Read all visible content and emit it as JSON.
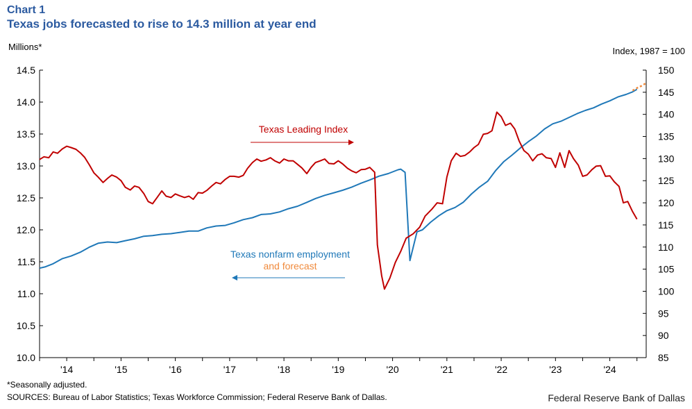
{
  "chart_label": "Chart 1",
  "title": "Texas jobs forecasted to rise to 14.3 million at year end",
  "left_axis_unit": "Millions*",
  "right_axis_unit": "Index,  1987 = 100",
  "footnote": "*Seasonally adjusted.",
  "sources": "SOURCES: Bureau of Labor Statistics; Texas Workforce Commission; Federal Reserve Bank of Dallas.",
  "credit": "Federal Reserve Bank of Dallas",
  "colors": {
    "employment": "#1f78b8",
    "leading": "#c00000",
    "forecast": "#f08a3c",
    "axis": "#000000"
  },
  "chart_data": {
    "type": "line",
    "x_range": [
      2013.5,
      2024.67
    ],
    "x_ticks": [
      {
        "label": "'14",
        "value": 2014.0
      },
      {
        "label": "'15",
        "value": 2015.0
      },
      {
        "label": "'16",
        "value": 2016.0
      },
      {
        "label": "'17",
        "value": 2017.0
      },
      {
        "label": "'18",
        "value": 2018.0
      },
      {
        "label": "'19",
        "value": 2019.0
      },
      {
        "label": "'20",
        "value": 2020.0
      },
      {
        "label": "'21",
        "value": 2021.0
      },
      {
        "label": "'22",
        "value": 2022.0
      },
      {
        "label": "'23",
        "value": 2023.0
      },
      {
        "label": "'24",
        "value": 2024.0
      }
    ],
    "y_left": {
      "label": "Millions*",
      "range": [
        10.0,
        14.5
      ],
      "ticks": [
        "10.0",
        "10.5",
        "11.0",
        "11.5",
        "12.0",
        "12.5",
        "13.0",
        "13.5",
        "14.0",
        "14.5"
      ]
    },
    "y_right": {
      "label": "Index, 1987 = 100",
      "range": [
        85,
        150
      ],
      "ticks": [
        "85",
        "90",
        "95",
        "100",
        "105",
        "110",
        "115",
        "120",
        "125",
        "130",
        "135",
        "140",
        "145",
        "150"
      ]
    },
    "series": [
      {
        "name": "Texas nonfarm employment",
        "axis": "left",
        "points": [
          [
            2013.5,
            11.4
          ],
          [
            2013.6,
            11.42
          ],
          [
            2013.75,
            11.47
          ],
          [
            2013.92,
            11.55
          ],
          [
            2014.08,
            11.59
          ],
          [
            2014.25,
            11.65
          ],
          [
            2014.42,
            11.73
          ],
          [
            2014.58,
            11.79
          ],
          [
            2014.75,
            11.81
          ],
          [
            2014.92,
            11.8
          ],
          [
            2015.08,
            11.83
          ],
          [
            2015.25,
            11.86
          ],
          [
            2015.42,
            11.9
          ],
          [
            2015.58,
            11.91
          ],
          [
            2015.75,
            11.93
          ],
          [
            2015.92,
            11.94
          ],
          [
            2016.08,
            11.96
          ],
          [
            2016.25,
            11.98
          ],
          [
            2016.42,
            11.98
          ],
          [
            2016.58,
            12.03
          ],
          [
            2016.75,
            12.06
          ],
          [
            2016.92,
            12.07
          ],
          [
            2017.08,
            12.11
          ],
          [
            2017.25,
            12.16
          ],
          [
            2017.42,
            12.19
          ],
          [
            2017.58,
            12.24
          ],
          [
            2017.75,
            12.25
          ],
          [
            2017.92,
            12.28
          ],
          [
            2018.08,
            12.33
          ],
          [
            2018.25,
            12.37
          ],
          [
            2018.42,
            12.43
          ],
          [
            2018.58,
            12.49
          ],
          [
            2018.75,
            12.54
          ],
          [
            2018.92,
            12.58
          ],
          [
            2019.08,
            12.62
          ],
          [
            2019.25,
            12.67
          ],
          [
            2019.42,
            12.73
          ],
          [
            2019.58,
            12.78
          ],
          [
            2019.75,
            12.84
          ],
          [
            2019.92,
            12.88
          ],
          [
            2020.1,
            12.94
          ],
          [
            2020.15,
            12.95
          ],
          [
            2020.23,
            12.9
          ],
          [
            2020.32,
            11.52
          ],
          [
            2020.45,
            11.97
          ],
          [
            2020.55,
            12.0
          ],
          [
            2020.7,
            12.12
          ],
          [
            2020.85,
            12.22
          ],
          [
            2021.0,
            12.3
          ],
          [
            2021.15,
            12.35
          ],
          [
            2021.3,
            12.43
          ],
          [
            2021.45,
            12.56
          ],
          [
            2021.6,
            12.67
          ],
          [
            2021.75,
            12.76
          ],
          [
            2021.9,
            12.93
          ],
          [
            2022.05,
            13.07
          ],
          [
            2022.2,
            13.17
          ],
          [
            2022.35,
            13.28
          ],
          [
            2022.5,
            13.38
          ],
          [
            2022.65,
            13.47
          ],
          [
            2022.8,
            13.58
          ],
          [
            2022.95,
            13.66
          ],
          [
            2023.1,
            13.7
          ],
          [
            2023.25,
            13.76
          ],
          [
            2023.4,
            13.82
          ],
          [
            2023.55,
            13.87
          ],
          [
            2023.7,
            13.91
          ],
          [
            2023.85,
            13.97
          ],
          [
            2024.0,
            14.02
          ],
          [
            2024.15,
            14.08
          ],
          [
            2024.3,
            14.12
          ],
          [
            2024.42,
            14.16
          ],
          [
            2024.5,
            14.2
          ]
        ]
      },
      {
        "name": "Texas employment forecast",
        "axis": "left",
        "dashed": true,
        "points": [
          [
            2024.42,
            14.18
          ],
          [
            2024.5,
            14.22
          ],
          [
            2024.6,
            14.26
          ],
          [
            2024.67,
            14.3
          ]
        ]
      },
      {
        "name": "Texas Leading Index",
        "axis": "right",
        "points": [
          [
            2013.5,
            129.8
          ],
          [
            2013.58,
            130.4
          ],
          [
            2013.67,
            130.2
          ],
          [
            2013.75,
            131.5
          ],
          [
            2013.83,
            131.2
          ],
          [
            2013.92,
            132.2
          ],
          [
            2014.0,
            132.8
          ],
          [
            2014.08,
            132.5
          ],
          [
            2014.17,
            132.1
          ],
          [
            2014.25,
            131.3
          ],
          [
            2014.33,
            130.3
          ],
          [
            2014.42,
            128.5
          ],
          [
            2014.5,
            126.8
          ],
          [
            2014.58,
            125.8
          ],
          [
            2014.67,
            124.6
          ],
          [
            2014.75,
            125.5
          ],
          [
            2014.83,
            126.3
          ],
          [
            2014.92,
            125.8
          ],
          [
            2015.0,
            125.0
          ],
          [
            2015.08,
            123.5
          ],
          [
            2015.17,
            122.9
          ],
          [
            2015.25,
            123.8
          ],
          [
            2015.33,
            123.5
          ],
          [
            2015.42,
            122.1
          ],
          [
            2015.5,
            120.3
          ],
          [
            2015.58,
            119.8
          ],
          [
            2015.67,
            121.3
          ],
          [
            2015.75,
            122.7
          ],
          [
            2015.83,
            121.5
          ],
          [
            2015.92,
            121.2
          ],
          [
            2016.0,
            122.0
          ],
          [
            2016.08,
            121.6
          ],
          [
            2016.17,
            121.2
          ],
          [
            2016.25,
            121.5
          ],
          [
            2016.33,
            120.8
          ],
          [
            2016.42,
            122.3
          ],
          [
            2016.5,
            122.2
          ],
          [
            2016.58,
            122.8
          ],
          [
            2016.67,
            123.8
          ],
          [
            2016.75,
            124.6
          ],
          [
            2016.83,
            124.3
          ],
          [
            2016.92,
            125.3
          ],
          [
            2017.0,
            126.0
          ],
          [
            2017.08,
            126.0
          ],
          [
            2017.17,
            125.8
          ],
          [
            2017.25,
            126.2
          ],
          [
            2017.33,
            127.8
          ],
          [
            2017.42,
            129.1
          ],
          [
            2017.5,
            129.9
          ],
          [
            2017.58,
            129.4
          ],
          [
            2017.67,
            129.7
          ],
          [
            2017.75,
            130.2
          ],
          [
            2017.83,
            129.5
          ],
          [
            2017.92,
            129.0
          ],
          [
            2018.0,
            129.9
          ],
          [
            2018.08,
            129.5
          ],
          [
            2018.17,
            129.5
          ],
          [
            2018.25,
            128.7
          ],
          [
            2018.33,
            127.9
          ],
          [
            2018.42,
            126.6
          ],
          [
            2018.5,
            128.0
          ],
          [
            2018.58,
            129.1
          ],
          [
            2018.67,
            129.5
          ],
          [
            2018.75,
            129.9
          ],
          [
            2018.83,
            128.9
          ],
          [
            2018.92,
            128.8
          ],
          [
            2019.0,
            129.5
          ],
          [
            2019.08,
            128.8
          ],
          [
            2019.17,
            127.8
          ],
          [
            2019.25,
            127.2
          ],
          [
            2019.33,
            126.8
          ],
          [
            2019.42,
            127.5
          ],
          [
            2019.5,
            127.6
          ],
          [
            2019.58,
            128.0
          ],
          [
            2019.67,
            126.9
          ],
          [
            2019.72,
            110.5
          ],
          [
            2019.8,
            103.5
          ],
          [
            2019.85,
            100.5
          ],
          [
            2019.95,
            103.0
          ],
          [
            2020.05,
            106.5
          ],
          [
            2020.15,
            109.0
          ],
          [
            2020.25,
            112.0
          ],
          [
            2020.38,
            113.0
          ],
          [
            2020.5,
            114.5
          ],
          [
            2020.6,
            117.0
          ],
          [
            2020.72,
            118.5
          ],
          [
            2020.82,
            120.0
          ],
          [
            2020.92,
            119.8
          ],
          [
            2021.0,
            125.8
          ],
          [
            2021.08,
            129.5
          ],
          [
            2021.17,
            131.2
          ],
          [
            2021.25,
            130.5
          ],
          [
            2021.33,
            130.7
          ],
          [
            2021.42,
            131.5
          ],
          [
            2021.5,
            132.5
          ],
          [
            2021.58,
            133.2
          ],
          [
            2021.67,
            135.5
          ],
          [
            2021.75,
            135.7
          ],
          [
            2021.83,
            136.3
          ],
          [
            2021.92,
            140.5
          ],
          [
            2022.0,
            139.5
          ],
          [
            2022.08,
            137.5
          ],
          [
            2022.17,
            138.0
          ],
          [
            2022.25,
            136.7
          ],
          [
            2022.33,
            134.0
          ],
          [
            2022.42,
            131.8
          ],
          [
            2022.5,
            131.0
          ],
          [
            2022.58,
            129.5
          ],
          [
            2022.67,
            130.8
          ],
          [
            2022.75,
            131.1
          ],
          [
            2022.83,
            130.2
          ],
          [
            2022.92,
            130.0
          ],
          [
            2023.0,
            128.0
          ],
          [
            2023.08,
            131.3
          ],
          [
            2023.17,
            128.0
          ],
          [
            2023.25,
            131.8
          ],
          [
            2023.33,
            130.0
          ],
          [
            2023.42,
            128.5
          ],
          [
            2023.5,
            126.0
          ],
          [
            2023.58,
            126.3
          ],
          [
            2023.67,
            127.5
          ],
          [
            2023.75,
            128.3
          ],
          [
            2023.83,
            128.4
          ],
          [
            2023.92,
            126.0
          ],
          [
            2024.0,
            126.1
          ],
          [
            2024.08,
            124.8
          ],
          [
            2024.17,
            123.7
          ],
          [
            2024.25,
            120.0
          ],
          [
            2024.33,
            120.3
          ],
          [
            2024.42,
            118.0
          ],
          [
            2024.5,
            116.3
          ]
        ]
      }
    ],
    "annotations": [
      {
        "text": "Texas  Leading Index",
        "color": "#c00000",
        "arrow": "right"
      },
      {
        "text": "Texas nonfarm  employment",
        "color": "#1f78b8",
        "arrow": "left"
      },
      {
        "text": "and forecast",
        "color": "#f08a3c"
      }
    ]
  }
}
